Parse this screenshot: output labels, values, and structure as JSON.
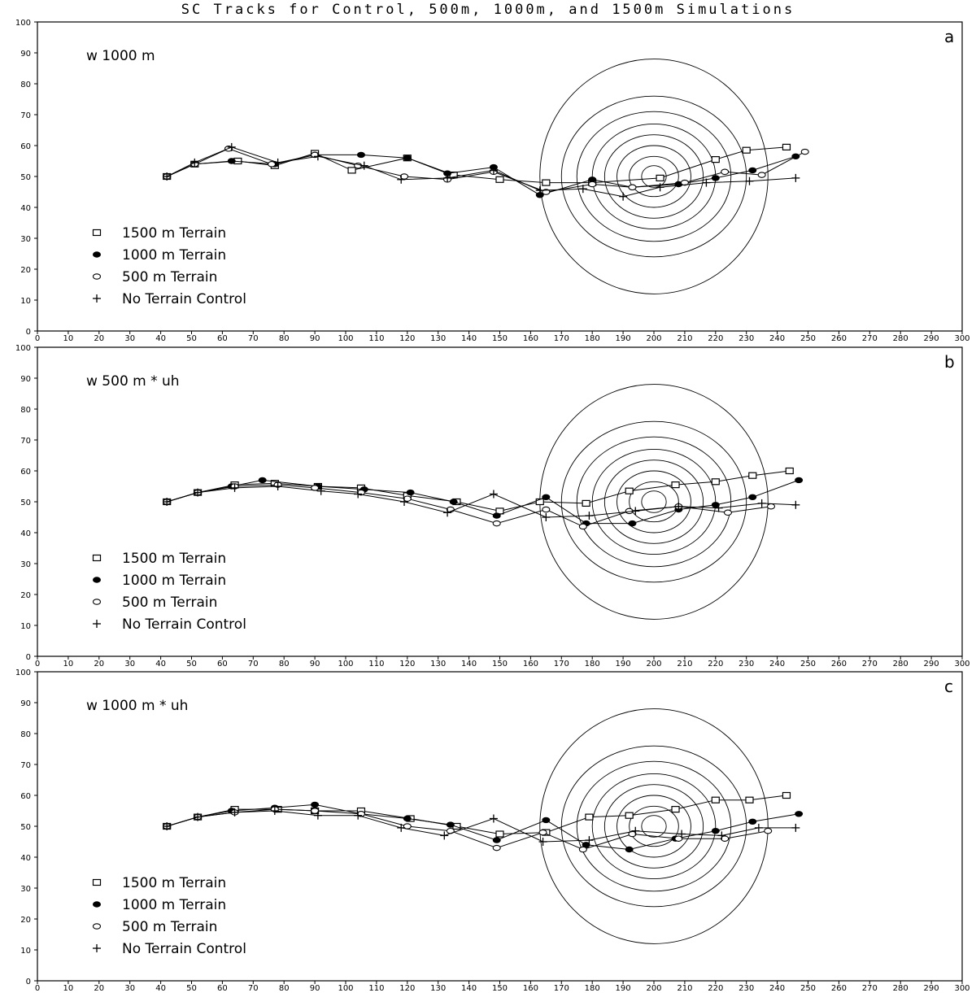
{
  "title": "SC Tracks for Control, 500m, 1000m, and 1500m Simulations",
  "legend": [
    {
      "key": "1500",
      "marker": "open-square",
      "label": "1500  m  Terrain"
    },
    {
      "key": "1000",
      "marker": "filled-circle",
      "label": "1000  m  Terrain"
    },
    {
      "key": "500",
      "marker": "open-circle",
      "label": "500  m  Terrain"
    },
    {
      "key": "control",
      "marker": "plus",
      "label": "No  Terrain  Control"
    }
  ],
  "colors": {
    "line": "#000000",
    "background": "#ffffff",
    "marker_fill": "#c8c8c8"
  },
  "chart_data": [
    {
      "type": "line",
      "panel_letter": "a",
      "annotation": "w  1000  m",
      "xlim": [
        0,
        300
      ],
      "ylim": [
        0,
        100
      ],
      "xticks": [
        0,
        10,
        20,
        30,
        40,
        50,
        60,
        70,
        80,
        90,
        100,
        110,
        120,
        130,
        140,
        150,
        160,
        170,
        180,
        190,
        200,
        210,
        220,
        230,
        240,
        250,
        260,
        270,
        280,
        290,
        300
      ],
      "yticks": [
        0,
        10,
        20,
        30,
        40,
        50,
        60,
        70,
        80,
        90,
        100
      ],
      "terrain_contours": {
        "center": [
          200,
          50
        ],
        "radii_x": [
          4,
          8,
          12,
          16,
          20,
          25,
          30,
          37
        ],
        "radii_y": [
          3.5,
          6.5,
          10,
          13.5,
          17,
          21,
          26,
          38
        ]
      },
      "series": [
        {
          "name": "1500  m  Terrain",
          "marker": "open-square",
          "x": [
            42,
            51,
            65,
            77,
            90,
            102,
            120,
            135,
            150,
            165,
            180,
            202,
            220,
            230,
            243
          ],
          "y": [
            50,
            54,
            55,
            53.5,
            57.5,
            52,
            56,
            50.5,
            49,
            48,
            48,
            49.5,
            55.5,
            58.5,
            59.5
          ]
        },
        {
          "name": "1000  m  Terrain",
          "marker": "filled-circle",
          "x": [
            42,
            51,
            63,
            77,
            90,
            105,
            120,
            133,
            148,
            163,
            180,
            193,
            208,
            220,
            232,
            246
          ],
          "y": [
            50,
            54,
            55,
            54,
            57,
            57,
            56,
            51,
            53,
            44,
            49,
            46.5,
            47.5,
            49.5,
            52,
            56.5
          ]
        },
        {
          "name": "500  m  Terrain",
          "marker": "open-circle",
          "x": [
            42,
            51,
            62,
            76,
            90,
            104,
            119,
            133,
            148,
            165,
            180,
            193,
            210,
            223,
            235,
            249
          ],
          "y": [
            50,
            54,
            59,
            54,
            57,
            53.5,
            50,
            49,
            51.5,
            45,
            47.5,
            46.5,
            48,
            51.5,
            50.5,
            58
          ]
        },
        {
          "name": "No  Terrain  Control",
          "marker": "plus",
          "x": [
            42,
            51,
            63,
            78,
            91,
            106,
            118,
            133,
            148,
            163,
            177,
            190,
            202,
            217,
            231,
            246
          ],
          "y": [
            50,
            54.5,
            59.5,
            54.5,
            56.5,
            53.5,
            49,
            49.5,
            52,
            45.5,
            46,
            43.5,
            46.5,
            48,
            48.5,
            49.5
          ]
        }
      ]
    },
    {
      "type": "line",
      "panel_letter": "b",
      "annotation": "w  500  m  *  uh",
      "xlim": [
        0,
        300
      ],
      "ylim": [
        0,
        100
      ],
      "xticks": [
        0,
        10,
        20,
        30,
        40,
        50,
        60,
        70,
        80,
        90,
        100,
        110,
        120,
        130,
        140,
        150,
        160,
        170,
        180,
        190,
        200,
        210,
        220,
        230,
        240,
        250,
        260,
        270,
        280,
        290,
        300
      ],
      "yticks": [
        0,
        10,
        20,
        30,
        40,
        50,
        60,
        70,
        80,
        90,
        100
      ],
      "terrain_contours": {
        "center": [
          200,
          50
        ],
        "radii_x": [
          4,
          8,
          12,
          16,
          20,
          25,
          30,
          37
        ],
        "radii_y": [
          3.5,
          6.5,
          10,
          13.5,
          17,
          21,
          26,
          38
        ]
      },
      "series": [
        {
          "name": "1500  m  Terrain",
          "marker": "open-square",
          "x": [
            42,
            52,
            64,
            77,
            91,
            105,
            120,
            136,
            150,
            163,
            178,
            192,
            207,
            220,
            232,
            244
          ],
          "y": [
            50,
            53,
            55.5,
            56,
            55,
            54.5,
            52,
            50,
            47,
            50,
            49.5,
            53.5,
            55.5,
            56.5,
            58.5,
            60
          ]
        },
        {
          "name": "1000  m  Terrain",
          "marker": "filled-circle",
          "x": [
            42,
            52,
            63,
            73,
            91,
            106,
            121,
            135,
            149,
            165,
            178,
            193,
            208,
            220,
            232,
            247
          ],
          "y": [
            50,
            53,
            55,
            57,
            55,
            54,
            53,
            50,
            45.5,
            51.5,
            43,
            43,
            47.5,
            49,
            51.5,
            57
          ]
        },
        {
          "name": "500  m  Terrain",
          "marker": "open-circle",
          "x": [
            42,
            52,
            64,
            78,
            90,
            105,
            120,
            134,
            149,
            165,
            177,
            192,
            208,
            224,
            238
          ],
          "y": [
            50,
            53,
            55,
            55.5,
            54.5,
            53,
            51,
            47.5,
            43,
            47.5,
            42,
            47,
            48.5,
            46.5,
            48.5
          ]
        },
        {
          "name": "No  Terrain  Control",
          "marker": "plus",
          "x": [
            42,
            52,
            64,
            78,
            92,
            104,
            119,
            133,
            148,
            165,
            179,
            194,
            208,
            221,
            235,
            246
          ],
          "y": [
            50,
            53,
            54.5,
            55,
            53.5,
            52.5,
            50,
            46.5,
            52.5,
            45,
            45.5,
            47,
            48.5,
            48,
            49.5,
            49
          ]
        }
      ]
    },
    {
      "type": "line",
      "panel_letter": "c",
      "annotation": "w  1000  m  *  uh",
      "xlim": [
        0,
        300
      ],
      "ylim": [
        0,
        100
      ],
      "xticks": [
        0,
        10,
        20,
        30,
        40,
        50,
        60,
        70,
        80,
        90,
        100,
        110,
        120,
        130,
        140,
        150,
        160,
        170,
        180,
        190,
        200,
        210,
        220,
        230,
        240,
        250,
        260,
        270,
        280,
        290,
        300
      ],
      "yticks": [
        0,
        10,
        20,
        30,
        40,
        50,
        60,
        70,
        80,
        90,
        100
      ],
      "terrain_contours": {
        "center": [
          200,
          50
        ],
        "radii_x": [
          4,
          8,
          12,
          16,
          20,
          25,
          30,
          37
        ],
        "radii_y": [
          3.5,
          6.5,
          10,
          13.5,
          17,
          21,
          26,
          38
        ]
      },
      "series": [
        {
          "name": "1500  m  Terrain",
          "marker": "open-square",
          "x": [
            42,
            52,
            64,
            78,
            90,
            105,
            121,
            136,
            150,
            165,
            179,
            192,
            207,
            220,
            231,
            243
          ],
          "y": [
            50,
            53,
            55.5,
            55.5,
            55,
            55,
            52.5,
            50,
            47.5,
            48,
            53,
            53.5,
            55.5,
            58.5,
            58.5,
            60
          ]
        },
        {
          "name": "1000  m  Terrain",
          "marker": "filled-circle",
          "x": [
            42,
            52,
            63,
            77,
            90,
            105,
            120,
            134,
            149,
            165,
            178,
            192,
            207,
            220,
            232,
            247
          ],
          "y": [
            50,
            53,
            55,
            56,
            57,
            54,
            52.5,
            50.5,
            45.5,
            52,
            44,
            42.5,
            46,
            48.5,
            51.5,
            54
          ]
        },
        {
          "name": "500  m  Terrain",
          "marker": "open-circle",
          "x": [
            42,
            52,
            64,
            77,
            90,
            105,
            120,
            134,
            149,
            164,
            177,
            193,
            208,
            223,
            237
          ],
          "y": [
            50,
            53,
            54.5,
            55.5,
            55,
            54,
            50,
            48.5,
            43,
            48,
            42.5,
            47.5,
            46,
            46,
            48.5
          ]
        },
        {
          "name": "No  Terrain  Control",
          "marker": "plus",
          "x": [
            42,
            52,
            64,
            77,
            91,
            104,
            118,
            132,
            148,
            164,
            179,
            194,
            209,
            222,
            234,
            246
          ],
          "y": [
            50,
            53,
            54.5,
            55,
            53.5,
            53.5,
            49.5,
            47,
            52.5,
            45,
            45.5,
            48.5,
            47.5,
            47,
            49.5,
            49.5
          ]
        }
      ]
    }
  ]
}
